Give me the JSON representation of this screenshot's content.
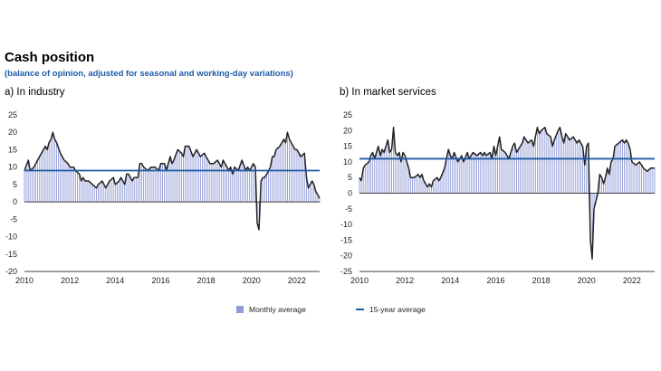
{
  "title": "Cash position",
  "subtitle": "(balance of opinion, adjusted for seasonal and working-day variations)",
  "legend": {
    "bars": "Monthly average",
    "line": "15-year average"
  },
  "colors": {
    "bar": "#8f9ad6",
    "line": "#222222",
    "average": "#1f5aa6",
    "axis": "#000000"
  },
  "chart_data": [
    {
      "type": "bar",
      "panel_label": "a)  In industry",
      "x_range": [
        2010,
        2023
      ],
      "x_ticks": [
        2010,
        2012,
        2014,
        2016,
        2018,
        2020,
        2022
      ],
      "ylim": [
        -20,
        25
      ],
      "y_ticks": [
        25,
        20,
        15,
        10,
        5,
        0,
        -5,
        -10,
        -15,
        -20
      ],
      "average": 9,
      "points": [
        [
          2010.0,
          9
        ],
        [
          2010.17,
          12
        ],
        [
          2010.25,
          9
        ],
        [
          2010.42,
          10
        ],
        [
          2010.58,
          12
        ],
        [
          2010.75,
          14
        ],
        [
          2010.92,
          16
        ],
        [
          2011.0,
          15
        ],
        [
          2011.08,
          17
        ],
        [
          2011.17,
          18
        ],
        [
          2011.25,
          20
        ],
        [
          2011.33,
          18
        ],
        [
          2011.42,
          17
        ],
        [
          2011.58,
          14
        ],
        [
          2011.75,
          12
        ],
        [
          2011.92,
          11
        ],
        [
          2012.0,
          10
        ],
        [
          2012.17,
          10
        ],
        [
          2012.25,
          9
        ],
        [
          2012.42,
          8
        ],
        [
          2012.5,
          6
        ],
        [
          2012.58,
          7
        ],
        [
          2012.67,
          6
        ],
        [
          2012.83,
          6
        ],
        [
          2013.0,
          5
        ],
        [
          2013.17,
          4
        ],
        [
          2013.25,
          5
        ],
        [
          2013.42,
          6
        ],
        [
          2013.5,
          5
        ],
        [
          2013.58,
          4
        ],
        [
          2013.75,
          6
        ],
        [
          2013.92,
          7
        ],
        [
          2014.0,
          5
        ],
        [
          2014.17,
          6
        ],
        [
          2014.25,
          7
        ],
        [
          2014.42,
          5
        ],
        [
          2014.5,
          8
        ],
        [
          2014.58,
          8
        ],
        [
          2014.75,
          6
        ],
        [
          2014.83,
          7
        ],
        [
          2015.0,
          7
        ],
        [
          2015.08,
          11
        ],
        [
          2015.17,
          11
        ],
        [
          2015.25,
          10
        ],
        [
          2015.42,
          9
        ],
        [
          2015.58,
          10
        ],
        [
          2015.75,
          10
        ],
        [
          2015.92,
          9
        ],
        [
          2016.0,
          11
        ],
        [
          2016.17,
          11
        ],
        [
          2016.25,
          9
        ],
        [
          2016.42,
          13
        ],
        [
          2016.5,
          11
        ],
        [
          2016.58,
          12
        ],
        [
          2016.75,
          15
        ],
        [
          2016.92,
          14
        ],
        [
          2017.0,
          13
        ],
        [
          2017.08,
          16
        ],
        [
          2017.25,
          16
        ],
        [
          2017.42,
          13
        ],
        [
          2017.5,
          14
        ],
        [
          2017.58,
          15
        ],
        [
          2017.75,
          13
        ],
        [
          2017.92,
          14
        ],
        [
          2018.0,
          13
        ],
        [
          2018.17,
          11
        ],
        [
          2018.33,
          11
        ],
        [
          2018.5,
          12
        ],
        [
          2018.67,
          10
        ],
        [
          2018.75,
          12
        ],
        [
          2018.92,
          10
        ],
        [
          2019.0,
          9
        ],
        [
          2019.08,
          10
        ],
        [
          2019.17,
          8
        ],
        [
          2019.25,
          10
        ],
        [
          2019.42,
          9
        ],
        [
          2019.58,
          12
        ],
        [
          2019.75,
          9
        ],
        [
          2019.83,
          10
        ],
        [
          2019.92,
          9
        ],
        [
          2020.0,
          10
        ],
        [
          2020.08,
          11
        ],
        [
          2020.17,
          10
        ],
        [
          2020.25,
          -6
        ],
        [
          2020.33,
          -8
        ],
        [
          2020.42,
          6
        ],
        [
          2020.5,
          7
        ],
        [
          2020.58,
          7
        ],
        [
          2020.67,
          8
        ],
        [
          2020.83,
          10
        ],
        [
          2020.92,
          13
        ],
        [
          2021.0,
          13
        ],
        [
          2021.08,
          15
        ],
        [
          2021.25,
          16
        ],
        [
          2021.42,
          18
        ],
        [
          2021.5,
          17
        ],
        [
          2021.58,
          20
        ],
        [
          2021.67,
          18
        ],
        [
          2021.75,
          17
        ],
        [
          2021.92,
          15
        ],
        [
          2022.0,
          15
        ],
        [
          2022.17,
          13
        ],
        [
          2022.33,
          14
        ],
        [
          2022.42,
          7
        ],
        [
          2022.5,
          4
        ],
        [
          2022.58,
          5
        ],
        [
          2022.67,
          6
        ],
        [
          2022.75,
          5
        ],
        [
          2022.83,
          3
        ],
        [
          2022.92,
          2
        ],
        [
          2023.0,
          1
        ]
      ]
    },
    {
      "type": "bar",
      "panel_label": "b)  In market services",
      "x_range": [
        2010,
        2023
      ],
      "x_ticks": [
        2010,
        2012,
        2014,
        2016,
        2018,
        2020,
        2022
      ],
      "ylim": [
        -25,
        25
      ],
      "y_ticks": [
        25,
        20,
        15,
        10,
        5,
        0,
        -5,
        -10,
        -15,
        -20,
        -25
      ],
      "average": 11,
      "points": [
        [
          2010.0,
          5
        ],
        [
          2010.08,
          4
        ],
        [
          2010.17,
          8
        ],
        [
          2010.25,
          9
        ],
        [
          2010.42,
          10
        ],
        [
          2010.5,
          12
        ],
        [
          2010.58,
          13
        ],
        [
          2010.67,
          11
        ],
        [
          2010.75,
          13
        ],
        [
          2010.83,
          15
        ],
        [
          2010.92,
          12
        ],
        [
          2011.0,
          14
        ],
        [
          2011.08,
          13
        ],
        [
          2011.17,
          15
        ],
        [
          2011.25,
          17
        ],
        [
          2011.33,
          13
        ],
        [
          2011.42,
          14
        ],
        [
          2011.5,
          21
        ],
        [
          2011.58,
          13
        ],
        [
          2011.67,
          12
        ],
        [
          2011.75,
          13
        ],
        [
          2011.83,
          10
        ],
        [
          2011.92,
          13
        ],
        [
          2012.0,
          12
        ],
        [
          2012.17,
          8
        ],
        [
          2012.25,
          5
        ],
        [
          2012.42,
          5
        ],
        [
          2012.58,
          6
        ],
        [
          2012.67,
          5
        ],
        [
          2012.75,
          6
        ],
        [
          2012.83,
          4
        ],
        [
          2013.0,
          2
        ],
        [
          2013.08,
          3
        ],
        [
          2013.17,
          2
        ],
        [
          2013.25,
          4
        ],
        [
          2013.42,
          5
        ],
        [
          2013.5,
          4
        ],
        [
          2013.58,
          5
        ],
        [
          2013.75,
          8
        ],
        [
          2013.83,
          11
        ],
        [
          2013.92,
          14
        ],
        [
          2014.0,
          12
        ],
        [
          2014.08,
          11
        ],
        [
          2014.17,
          13
        ],
        [
          2014.33,
          10
        ],
        [
          2014.5,
          12
        ],
        [
          2014.58,
          10
        ],
        [
          2014.75,
          13
        ],
        [
          2014.83,
          11
        ],
        [
          2015.0,
          13
        ],
        [
          2015.17,
          12
        ],
        [
          2015.33,
          13
        ],
        [
          2015.42,
          12
        ],
        [
          2015.5,
          13
        ],
        [
          2015.58,
          12
        ],
        [
          2015.75,
          13
        ],
        [
          2015.83,
          11
        ],
        [
          2015.92,
          15
        ],
        [
          2016.0,
          12
        ],
        [
          2016.17,
          18
        ],
        [
          2016.25,
          14
        ],
        [
          2016.42,
          13
        ],
        [
          2016.58,
          11
        ],
        [
          2016.75,
          15
        ],
        [
          2016.83,
          16
        ],
        [
          2016.92,
          13
        ],
        [
          2017.0,
          14
        ],
        [
          2017.17,
          16
        ],
        [
          2017.25,
          18
        ],
        [
          2017.42,
          16
        ],
        [
          2017.58,
          17
        ],
        [
          2017.67,
          15
        ],
        [
          2017.75,
          18
        ],
        [
          2017.83,
          21
        ],
        [
          2017.92,
          19
        ],
        [
          2018.0,
          20
        ],
        [
          2018.17,
          21
        ],
        [
          2018.25,
          19
        ],
        [
          2018.42,
          18
        ],
        [
          2018.5,
          15
        ],
        [
          2018.58,
          17
        ],
        [
          2018.75,
          20
        ],
        [
          2018.83,
          21
        ],
        [
          2018.92,
          18
        ],
        [
          2019.0,
          16
        ],
        [
          2019.08,
          19
        ],
        [
          2019.17,
          18
        ],
        [
          2019.25,
          17
        ],
        [
          2019.42,
          18
        ],
        [
          2019.58,
          16
        ],
        [
          2019.67,
          17
        ],
        [
          2019.83,
          15
        ],
        [
          2019.92,
          9
        ],
        [
          2020.0,
          15
        ],
        [
          2020.08,
          16
        ],
        [
          2020.17,
          -15
        ],
        [
          2020.25,
          -21
        ],
        [
          2020.33,
          -5
        ],
        [
          2020.5,
          0
        ],
        [
          2020.58,
          6
        ],
        [
          2020.67,
          5
        ],
        [
          2020.75,
          3
        ],
        [
          2020.83,
          5
        ],
        [
          2020.92,
          8
        ],
        [
          2021.0,
          6
        ],
        [
          2021.08,
          10
        ],
        [
          2021.17,
          11
        ],
        [
          2021.25,
          15
        ],
        [
          2021.42,
          16
        ],
        [
          2021.58,
          17
        ],
        [
          2021.67,
          16
        ],
        [
          2021.75,
          17
        ],
        [
          2021.83,
          16
        ],
        [
          2021.92,
          14
        ],
        [
          2022.0,
          10
        ],
        [
          2022.17,
          9
        ],
        [
          2022.33,
          10
        ],
        [
          2022.42,
          9
        ],
        [
          2022.5,
          8
        ],
        [
          2022.67,
          7
        ],
        [
          2022.83,
          8
        ],
        [
          2023.0,
          8
        ]
      ]
    }
  ]
}
